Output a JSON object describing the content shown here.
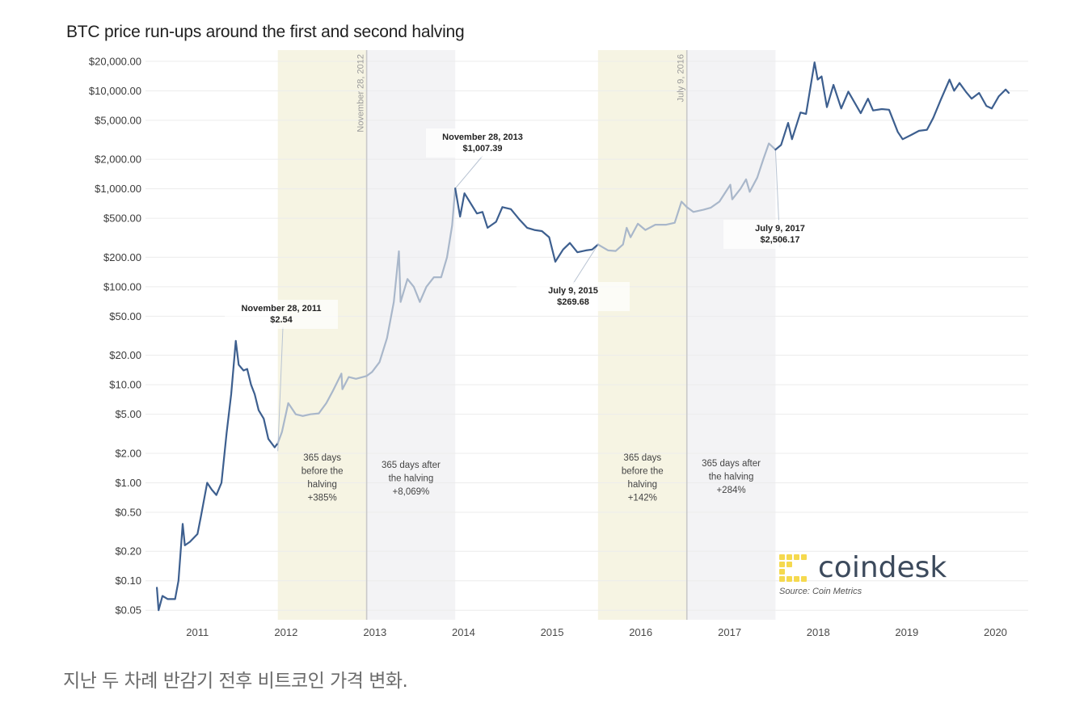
{
  "chart_data": {
    "type": "line",
    "title": "BTC price run-ups around the first and second halving",
    "xlabel": "",
    "ylabel": "",
    "y_scale": "log",
    "ylim": [
      0.04,
      26000
    ],
    "xlim": [
      "2010-06-01",
      "2020-05-15"
    ],
    "grid": true,
    "y_ticks": [
      {
        "value": 20000,
        "label": "$20,000.00"
      },
      {
        "value": 10000,
        "label": "$10,000.00"
      },
      {
        "value": 5000,
        "label": "$5,000.00"
      },
      {
        "value": 2000,
        "label": "$2,000.00"
      },
      {
        "value": 1000,
        "label": "$1,000.00"
      },
      {
        "value": 500,
        "label": "$500.00"
      },
      {
        "value": 200,
        "label": "$200.00"
      },
      {
        "value": 100,
        "label": "$100.00"
      },
      {
        "value": 50,
        "label": "$50.00"
      },
      {
        "value": 20,
        "label": "$20.00"
      },
      {
        "value": 10,
        "label": "$10.00"
      },
      {
        "value": 5,
        "label": "$5.00"
      },
      {
        "value": 2,
        "label": "$2.00"
      },
      {
        "value": 1,
        "label": "$1.00"
      },
      {
        "value": 0.5,
        "label": "$0.50"
      },
      {
        "value": 0.2,
        "label": "$0.20"
      },
      {
        "value": 0.1,
        "label": "$0.10"
      },
      {
        "value": 0.05,
        "label": "$0.05"
      }
    ],
    "x_ticks": [
      {
        "date": "2011-01-01",
        "label": "2011"
      },
      {
        "date": "2012-01-01",
        "label": "2012"
      },
      {
        "date": "2013-01-01",
        "label": "2013"
      },
      {
        "date": "2014-01-01",
        "label": "2014"
      },
      {
        "date": "2015-01-01",
        "label": "2015"
      },
      {
        "date": "2016-01-01",
        "label": "2016"
      },
      {
        "date": "2017-01-01",
        "label": "2017"
      },
      {
        "date": "2018-01-01",
        "label": "2018"
      },
      {
        "date": "2019-01-01",
        "label": "2019"
      },
      {
        "date": "2020-01-01",
        "label": "2020"
      }
    ],
    "series": [
      {
        "color": "#3d5f8f",
        "faded_color": "#a9b7ca",
        "points": [
          [
            "2010-07-18",
            0.085
          ],
          [
            "2010-07-25",
            0.05
          ],
          [
            "2010-08-10",
            0.07
          ],
          [
            "2010-09-01",
            0.065
          ],
          [
            "2010-10-01",
            0.065
          ],
          [
            "2010-10-15",
            0.1
          ],
          [
            "2010-11-01",
            0.38
          ],
          [
            "2010-11-10",
            0.23
          ],
          [
            "2010-12-01",
            0.25
          ],
          [
            "2011-01-01",
            0.3
          ],
          [
            "2011-01-15",
            0.45
          ],
          [
            "2011-02-10",
            1.0
          ],
          [
            "2011-03-01",
            0.85
          ],
          [
            "2011-03-20",
            0.75
          ],
          [
            "2011-04-10",
            1.0
          ],
          [
            "2011-05-01",
            3.2
          ],
          [
            "2011-05-20",
            8.0
          ],
          [
            "2011-06-08",
            28
          ],
          [
            "2011-06-20",
            16
          ],
          [
            "2011-07-10",
            14
          ],
          [
            "2011-07-25",
            14.5
          ],
          [
            "2011-08-10",
            10
          ],
          [
            "2011-08-25",
            8
          ],
          [
            "2011-09-10",
            5.5
          ],
          [
            "2011-10-01",
            4.5
          ],
          [
            "2011-10-20",
            2.8
          ],
          [
            "2011-11-15",
            2.3
          ],
          [
            "2011-11-28",
            2.54
          ],
          [
            "2011-12-15",
            3.3
          ],
          [
            "2012-01-10",
            6.5
          ],
          [
            "2012-02-10",
            5.0
          ],
          [
            "2012-03-10",
            4.8
          ],
          [
            "2012-04-10",
            5.0
          ],
          [
            "2012-05-15",
            5.1
          ],
          [
            "2012-06-15",
            6.5
          ],
          [
            "2012-07-10",
            8.5
          ],
          [
            "2012-08-16",
            13
          ],
          [
            "2012-08-20",
            9
          ],
          [
            "2012-09-15",
            12
          ],
          [
            "2012-10-15",
            11.5
          ],
          [
            "2012-11-28",
            12.3
          ],
          [
            "2012-12-20",
            13.5
          ],
          [
            "2013-01-20",
            17
          ],
          [
            "2013-02-20",
            30
          ],
          [
            "2013-03-20",
            70
          ],
          [
            "2013-04-10",
            230
          ],
          [
            "2013-04-17",
            70
          ],
          [
            "2013-05-15",
            120
          ],
          [
            "2013-06-10",
            100
          ],
          [
            "2013-07-05",
            70
          ],
          [
            "2013-08-01",
            100
          ],
          [
            "2013-09-01",
            125
          ],
          [
            "2013-10-01",
            125
          ],
          [
            "2013-10-25",
            200
          ],
          [
            "2013-11-15",
            420
          ],
          [
            "2013-11-28",
            1007.39
          ],
          [
            "2013-12-18",
            520
          ],
          [
            "2014-01-05",
            900
          ],
          [
            "2014-02-25",
            560
          ],
          [
            "2014-03-20",
            580
          ],
          [
            "2014-04-10",
            400
          ],
          [
            "2014-05-15",
            460
          ],
          [
            "2014-06-10",
            650
          ],
          [
            "2014-07-15",
            620
          ],
          [
            "2014-08-18",
            490
          ],
          [
            "2014-09-20",
            400
          ],
          [
            "2014-10-20",
            380
          ],
          [
            "2014-11-20",
            370
          ],
          [
            "2014-12-20",
            320
          ],
          [
            "2015-01-14",
            180
          ],
          [
            "2015-02-15",
            240
          ],
          [
            "2015-03-15",
            280
          ],
          [
            "2015-04-15",
            225
          ],
          [
            "2015-05-20",
            235
          ],
          [
            "2015-06-15",
            240
          ],
          [
            "2015-07-09",
            269.68
          ],
          [
            "2015-08-20",
            235
          ],
          [
            "2015-09-20",
            232
          ],
          [
            "2015-10-20",
            270
          ],
          [
            "2015-11-04",
            400
          ],
          [
            "2015-11-20",
            320
          ],
          [
            "2015-12-20",
            440
          ],
          [
            "2016-01-20",
            380
          ],
          [
            "2016-03-01",
            430
          ],
          [
            "2016-04-15",
            430
          ],
          [
            "2016-05-20",
            450
          ],
          [
            "2016-06-17",
            740
          ],
          [
            "2016-07-09",
            650
          ],
          [
            "2016-08-05",
            580
          ],
          [
            "2016-09-15",
            610
          ],
          [
            "2016-10-15",
            640
          ],
          [
            "2016-11-20",
            740
          ],
          [
            "2017-01-04",
            1100
          ],
          [
            "2017-01-12",
            780
          ],
          [
            "2017-02-15",
            1000
          ],
          [
            "2017-03-10",
            1250
          ],
          [
            "2017-03-25",
            930
          ],
          [
            "2017-04-25",
            1300
          ],
          [
            "2017-05-20",
            2000
          ],
          [
            "2017-06-12",
            2900
          ],
          [
            "2017-07-09",
            2506.17
          ],
          [
            "2017-08-01",
            2800
          ],
          [
            "2017-08-30",
            4700
          ],
          [
            "2017-09-15",
            3200
          ],
          [
            "2017-10-20",
            6000
          ],
          [
            "2017-11-12",
            5800
          ],
          [
            "2017-12-17",
            19500
          ],
          [
            "2017-12-30",
            13000
          ],
          [
            "2018-01-15",
            14000
          ],
          [
            "2018-02-06",
            6800
          ],
          [
            "2018-03-05",
            11500
          ],
          [
            "2018-04-06",
            6600
          ],
          [
            "2018-05-05",
            9800
          ],
          [
            "2018-06-25",
            5900
          ],
          [
            "2018-07-25",
            8300
          ],
          [
            "2018-08-15",
            6300
          ],
          [
            "2018-09-20",
            6500
          ],
          [
            "2018-10-20",
            6400
          ],
          [
            "2018-11-25",
            3800
          ],
          [
            "2018-12-15",
            3200
          ],
          [
            "2019-01-20",
            3550
          ],
          [
            "2019-02-20",
            3900
          ],
          [
            "2019-03-25",
            4000
          ],
          [
            "2019-04-20",
            5300
          ],
          [
            "2019-05-20",
            8000
          ],
          [
            "2019-06-26",
            13000
          ],
          [
            "2019-07-15",
            10000
          ],
          [
            "2019-08-06",
            12000
          ],
          [
            "2019-09-01",
            9800
          ],
          [
            "2019-09-25",
            8300
          ],
          [
            "2019-10-26",
            9500
          ],
          [
            "2019-11-25",
            7000
          ],
          [
            "2019-12-17",
            6600
          ],
          [
            "2020-01-15",
            8800
          ],
          [
            "2020-02-12",
            10300
          ],
          [
            "2020-02-25",
            9500
          ]
        ]
      }
    ],
    "shaded_regions": [
      {
        "start": "2011-11-28",
        "end": "2012-11-28",
        "color": "#f6f4e3",
        "label_lines": [
          "365 days",
          "before the",
          "halving",
          "+385%"
        ]
      },
      {
        "start": "2012-11-28",
        "end": "2013-11-28",
        "color": "#f3f3f5",
        "label_lines": [
          "365 days after",
          "the halving",
          "+8,069%"
        ]
      },
      {
        "start": "2015-07-09",
        "end": "2016-07-09",
        "color": "#f6f4e3",
        "label_lines": [
          "365 days",
          "before the",
          "halving",
          "+142%"
        ]
      },
      {
        "start": "2016-07-09",
        "end": "2017-07-09",
        "color": "#f3f3f5",
        "label_lines": [
          "365 days after",
          "the halving",
          "+284%"
        ]
      }
    ],
    "halving_lines": [
      {
        "date": "2012-11-28",
        "label": "November 28, 2012"
      },
      {
        "date": "2016-07-09",
        "label": "July 9, 2016"
      }
    ],
    "annotations": [
      {
        "date": "2011-11-28",
        "value": 2.54,
        "lines": [
          "November 28, 2011",
          "$2.54"
        ]
      },
      {
        "date": "2013-11-28",
        "value": 1007.39,
        "lines": [
          "November 28, 2013",
          "$1,007.39"
        ]
      },
      {
        "date": "2015-07-09",
        "value": 269.68,
        "lines": [
          "July 9, 2015",
          "$269.68"
        ]
      },
      {
        "date": "2017-07-09",
        "value": 2506.17,
        "lines": [
          "July 9, 2017",
          "$2,506.17"
        ]
      }
    ]
  },
  "branding": {
    "logo_text": "coindesk",
    "logo_color": "#f5d94e",
    "source": "Source: Coin Metrics"
  },
  "caption": "지난 두 차례 반감기 전후 비트코인 가격 변화."
}
